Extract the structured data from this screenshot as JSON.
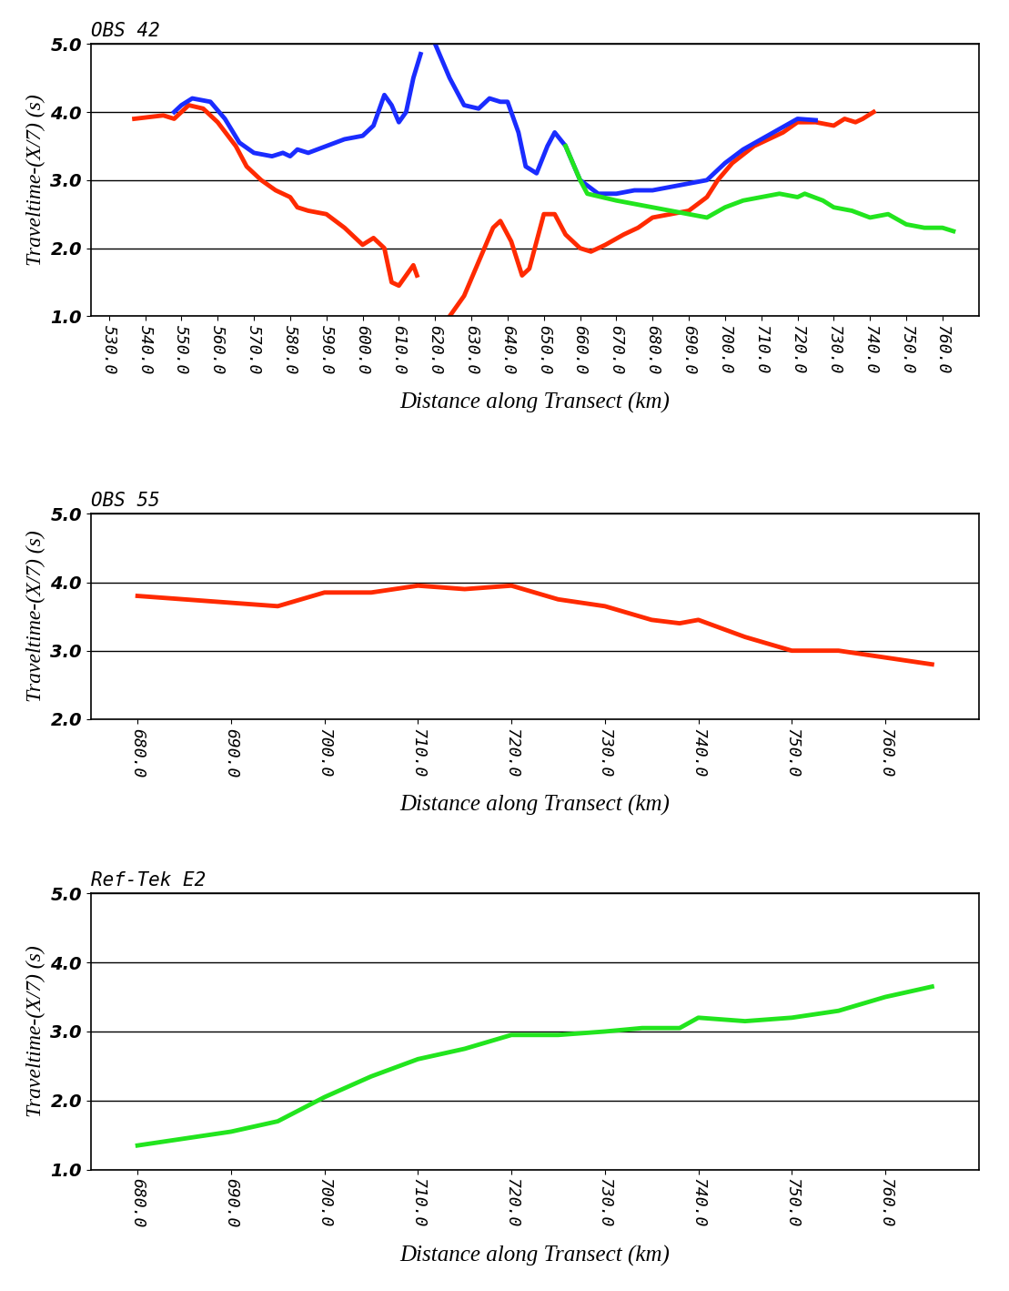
{
  "chart_data": [
    {
      "type": "line",
      "title": "OBS 42",
      "x_label": "Distance along Transect (km)",
      "y_label": "Traveltime-(X/7) (s)",
      "xlim": [
        525,
        770
      ],
      "ylim": [
        1.0,
        5.0
      ],
      "xticks": [
        {
          "value": 530,
          "label": "530.0"
        },
        {
          "value": 540,
          "label": "540.0"
        },
        {
          "value": 550,
          "label": "550.0"
        },
        {
          "value": 560,
          "label": "560.0"
        },
        {
          "value": 570,
          "label": "570.0"
        },
        {
          "value": 580,
          "label": "580.0"
        },
        {
          "value": 590,
          "label": "590.0"
        },
        {
          "value": 600,
          "label": "600.0"
        },
        {
          "value": 610,
          "label": "610.0"
        },
        {
          "value": 620,
          "label": "620.0"
        },
        {
          "value": 630,
          "label": "630.0"
        },
        {
          "value": 640,
          "label": "640.0"
        },
        {
          "value": 650,
          "label": "650.0"
        },
        {
          "value": 660,
          "label": "660.0"
        },
        {
          "value": 670,
          "label": "670.0"
        },
        {
          "value": 680,
          "label": "680.0"
        },
        {
          "value": 690,
          "label": "690.0"
        },
        {
          "value": 700,
          "label": "700.0"
        },
        {
          "value": 710,
          "label": "710.0"
        },
        {
          "value": 720,
          "label": "720.0"
        },
        {
          "value": 730,
          "label": "730.0"
        },
        {
          "value": 740,
          "label": "740.0"
        },
        {
          "value": 750,
          "label": "750.0"
        },
        {
          "value": 760,
          "label": "760.0"
        }
      ],
      "yticks": [
        {
          "value": 1.0,
          "label": "1.0"
        },
        {
          "value": 2.0,
          "label": "2.0"
        },
        {
          "value": 3.0,
          "label": "3.0"
        },
        {
          "value": 4.0,
          "label": "4.0"
        },
        {
          "value": 5.0,
          "label": "5.0"
        }
      ],
      "grid": "y",
      "series": [
        {
          "color": "#ff2a00",
          "x": [
            537,
            545,
            548,
            552,
            556,
            560,
            565,
            568,
            572,
            576,
            580,
            582,
            585,
            590,
            595,
            600,
            603,
            606,
            608,
            610,
            612,
            614,
            615,
            619,
            624,
            628,
            632,
            636,
            638,
            641,
            644,
            646,
            648,
            650,
            653,
            656,
            660,
            663,
            667,
            672,
            676,
            680,
            685,
            690,
            695,
            698,
            702,
            708,
            712,
            716,
            720,
            725,
            730,
            733,
            736,
            738,
            741
          ],
          "values": [
            3.9,
            3.95,
            3.9,
            4.1,
            4.05,
            3.85,
            3.5,
            3.2,
            3.0,
            2.85,
            2.75,
            2.6,
            2.55,
            2.5,
            2.3,
            2.05,
            2.15,
            2.0,
            1.5,
            1.45,
            1.6,
            1.75,
            1.6,
            null,
            1.0,
            1.3,
            1.8,
            2.3,
            2.4,
            2.1,
            1.6,
            1.7,
            2.1,
            2.5,
            2.5,
            2.2,
            2.0,
            1.95,
            2.05,
            2.2,
            2.3,
            2.45,
            2.5,
            2.55,
            2.75,
            3.0,
            3.25,
            3.5,
            3.6,
            3.7,
            3.85,
            3.85,
            3.8,
            3.9,
            3.85,
            3.9,
            4.0
          ]
        },
        {
          "color": "#1a2cff",
          "x": [
            548,
            550,
            553,
            558,
            562,
            566,
            570,
            575,
            578,
            580,
            582,
            585,
            590,
            595,
            600,
            603,
            606,
            608,
            610,
            612,
            614,
            616,
            618,
            620,
            624,
            628,
            632,
            635,
            638,
            640,
            643,
            645,
            648,
            651,
            653,
            656,
            660,
            665,
            670,
            675,
            680,
            685,
            690,
            695,
            700,
            705,
            710,
            715,
            720,
            725
          ],
          "values": [
            4.0,
            4.1,
            4.2,
            4.15,
            3.9,
            3.55,
            3.4,
            3.35,
            3.4,
            3.35,
            3.45,
            3.4,
            3.5,
            3.6,
            3.65,
            3.8,
            4.25,
            4.1,
            3.85,
            4.0,
            4.5,
            4.85,
            null,
            5.0,
            4.5,
            4.1,
            4.05,
            4.2,
            4.15,
            4.15,
            3.7,
            3.2,
            3.1,
            3.5,
            3.7,
            3.5,
            3.0,
            2.8,
            2.8,
            2.85,
            2.85,
            2.9,
            2.95,
            3.0,
            3.25,
            3.45,
            3.6,
            3.75,
            3.9,
            3.88
          ]
        },
        {
          "color": "#22e51e",
          "x": [
            656,
            660,
            662,
            670,
            680,
            690,
            695,
            700,
            705,
            710,
            715,
            720,
            722,
            727,
            730,
            735,
            740,
            745,
            750,
            755,
            760,
            763
          ],
          "values": [
            3.5,
            3.0,
            2.8,
            2.7,
            2.6,
            2.5,
            2.45,
            2.6,
            2.7,
            2.75,
            2.8,
            2.75,
            2.8,
            2.7,
            2.6,
            2.55,
            2.45,
            2.5,
            2.35,
            2.3,
            2.3,
            2.25
          ]
        }
      ]
    },
    {
      "type": "line",
      "title": "OBS 55",
      "x_label": "Distance along Transect (km)",
      "y_label": "Traveltime-(X/7) (s)",
      "xlim": [
        675,
        770
      ],
      "ylim": [
        2.0,
        5.0
      ],
      "xticks": [
        {
          "value": 680,
          "label": "680.0"
        },
        {
          "value": 690,
          "label": "690.0"
        },
        {
          "value": 700,
          "label": "700.0"
        },
        {
          "value": 710,
          "label": "710.0"
        },
        {
          "value": 720,
          "label": "720.0"
        },
        {
          "value": 730,
          "label": "730.0"
        },
        {
          "value": 740,
          "label": "740.0"
        },
        {
          "value": 750,
          "label": "750.0"
        },
        {
          "value": 760,
          "label": "760.0"
        }
      ],
      "yticks": [
        {
          "value": 2.0,
          "label": "2.0"
        },
        {
          "value": 3.0,
          "label": "3.0"
        },
        {
          "value": 4.0,
          "label": "4.0"
        },
        {
          "value": 5.0,
          "label": "5.0"
        }
      ],
      "grid": "y",
      "series": [
        {
          "color": "#ff2a00",
          "x": [
            680,
            690,
            695,
            700,
            705,
            710,
            715,
            720,
            725,
            730,
            735,
            738,
            740,
            745,
            750,
            755,
            760,
            765
          ],
          "values": [
            3.8,
            3.7,
            3.65,
            3.85,
            3.85,
            3.95,
            3.9,
            3.95,
            3.75,
            3.65,
            3.45,
            3.4,
            3.45,
            3.2,
            3.0,
            3.0,
            2.9,
            2.8
          ]
        }
      ]
    },
    {
      "type": "line",
      "title": "Ref-Tek E2",
      "x_label": "Distance along Transect (km)",
      "y_label": "Traveltime-(X/7) (s)",
      "xlim": [
        675,
        770
      ],
      "ylim": [
        1.0,
        5.0
      ],
      "xticks": [
        {
          "value": 680,
          "label": "680.0"
        },
        {
          "value": 690,
          "label": "690.0"
        },
        {
          "value": 700,
          "label": "700.0"
        },
        {
          "value": 710,
          "label": "710.0"
        },
        {
          "value": 720,
          "label": "720.0"
        },
        {
          "value": 730,
          "label": "730.0"
        },
        {
          "value": 740,
          "label": "740.0"
        },
        {
          "value": 750,
          "label": "750.0"
        },
        {
          "value": 760,
          "label": "760.0"
        }
      ],
      "yticks": [
        {
          "value": 1.0,
          "label": "1.0"
        },
        {
          "value": 2.0,
          "label": "2.0"
        },
        {
          "value": 3.0,
          "label": "3.0"
        },
        {
          "value": 4.0,
          "label": "4.0"
        },
        {
          "value": 5.0,
          "label": "5.0"
        }
      ],
      "grid": "y",
      "series": [
        {
          "color": "#22e51e",
          "x": [
            680,
            685,
            690,
            695,
            700,
            705,
            710,
            715,
            720,
            725,
            730,
            734,
            738,
            740,
            745,
            750,
            755,
            760,
            765
          ],
          "values": [
            1.35,
            1.45,
            1.55,
            1.7,
            2.05,
            2.35,
            2.6,
            2.75,
            2.95,
            2.95,
            3.0,
            3.05,
            3.05,
            3.2,
            3.15,
            3.2,
            3.3,
            3.5,
            3.65
          ]
        }
      ]
    }
  ]
}
